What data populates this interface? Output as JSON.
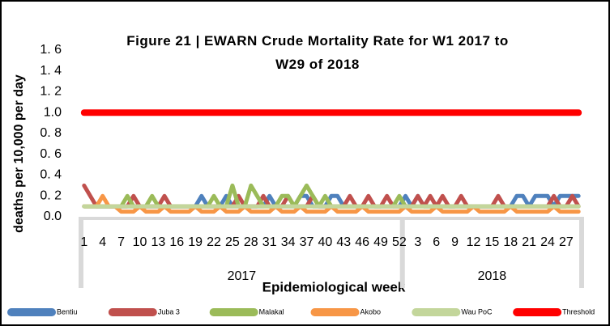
{
  "chart_data": {
    "type": "line",
    "title": "Figure 21 | EWARN Crude Mortality Rate for W1 2017 to W29 of 2018",
    "y_label": "deaths per 10,000 per day",
    "x_label": "Epidemiological week",
    "categories": [
      "1",
      null,
      null,
      "4",
      null,
      null,
      "7",
      null,
      null,
      "10",
      null,
      null,
      "13",
      null,
      null,
      "16",
      null,
      null,
      "19",
      null,
      null,
      "22",
      null,
      null,
      "25",
      null,
      null,
      "28",
      null,
      null,
      "31",
      null,
      null,
      "34",
      null,
      null,
      "37",
      null,
      null,
      "40",
      null,
      null,
      "43",
      null,
      null,
      "46",
      null,
      null,
      "49",
      null,
      null,
      "52",
      null,
      null,
      "3",
      null,
      null,
      "6",
      null,
      null,
      "9",
      null,
      null,
      "12",
      null,
      null,
      "15",
      null,
      null,
      "18",
      null,
      null,
      "21",
      null,
      null,
      "24",
      null,
      null,
      "27",
      null,
      null
    ],
    "x_groups": [
      {
        "label": "2017",
        "weeks": 52
      },
      {
        "label": "2018",
        "weeks": 29
      }
    ],
    "ylim": [
      0,
      1.6
    ],
    "yticks": [
      {
        "value": 0,
        "label": "0.0"
      },
      {
        "value": 0.2,
        "label": "0. 2"
      },
      {
        "value": 0.4,
        "label": "0. 4"
      },
      {
        "value": 0.6,
        "label": "0. 6"
      },
      {
        "value": 0.8,
        "label": "0. 8"
      },
      {
        "value": 1,
        "label": "1.0"
      },
      {
        "value": 1.2,
        "label": "1. 2"
      },
      {
        "value": 1.4,
        "label": "1. 4"
      },
      {
        "value": 1.6,
        "label": "1. 6"
      }
    ],
    "grid": false,
    "legend": "bottom",
    "series": [
      {
        "name": "Bentiu",
        "color": "#4f81bd",
        "values": [
          0.1,
          0.1,
          0.1,
          0.1,
          0.1,
          0.1,
          0.1,
          0.1,
          0.1,
          0.1,
          0.1,
          0.1,
          0.1,
          0.1,
          0.1,
          0.1,
          0.1,
          0.1,
          0.1,
          0.2,
          0.1,
          0.1,
          0.1,
          0.2,
          0.1,
          0.1,
          0.1,
          0.1,
          0.1,
          0.1,
          0.2,
          0.1,
          0.1,
          0.1,
          0.1,
          0.2,
          0.2,
          0.1,
          0.1,
          0.1,
          0.2,
          0.2,
          0.1,
          0.1,
          0.1,
          0.1,
          0.1,
          0.1,
          0.1,
          0.1,
          0.1,
          0.1,
          0.2,
          0.1,
          0.2,
          0.1,
          0.1,
          0.1,
          0.1,
          0.1,
          0.1,
          0.1,
          0.1,
          0.1,
          0.1,
          0.1,
          0.1,
          0.1,
          0.1,
          0.1,
          0.2,
          0.2,
          0.1,
          0.2,
          0.2,
          0.2,
          0.1,
          0.2,
          0.2,
          0.2,
          0.2
        ]
      },
      {
        "name": "Juba 3",
        "color": "#c0504d",
        "values": [
          0.3,
          0.2,
          0.1,
          0.1,
          0.1,
          0.1,
          0.1,
          0.1,
          0.2,
          0.1,
          0.1,
          0.1,
          0.1,
          0.2,
          0.1,
          0.1,
          0.1,
          0.1,
          0.1,
          0.1,
          0.1,
          0.1,
          0.1,
          0.1,
          0.1,
          0.2,
          0.1,
          0.1,
          0.1,
          0.2,
          0.1,
          0.1,
          0.1,
          0.2,
          0.1,
          0.1,
          0.1,
          0.2,
          0.1,
          0.1,
          0.1,
          0.1,
          0.1,
          0.2,
          0.1,
          0.1,
          0.2,
          0.1,
          0.1,
          0.2,
          0.1,
          0.1,
          0.1,
          0.1,
          0.2,
          0.1,
          0.2,
          0.1,
          0.2,
          0.1,
          0.1,
          0.2,
          0.1,
          0.1,
          0.1,
          0.1,
          0.1,
          0.2,
          0.1,
          0.1,
          0.1,
          0.1,
          0.1,
          0.1,
          0.1,
          0.1,
          0.2,
          0.1,
          0.1,
          0.2,
          0.1
        ]
      },
      {
        "name": "Malakal",
        "color": "#9bbb59",
        "values": [
          0.1,
          0.1,
          0.1,
          0.1,
          0.1,
          0.1,
          0.1,
          0.2,
          0.1,
          0.1,
          0.1,
          0.2,
          0.1,
          0.1,
          0.1,
          0.1,
          0.1,
          0.1,
          0.1,
          0.1,
          0.1,
          0.2,
          0.1,
          0.1,
          0.3,
          0.1,
          0.1,
          0.3,
          0.2,
          0.1,
          0.1,
          0.1,
          0.2,
          0.2,
          0.1,
          0.2,
          0.3,
          0.2,
          0.1,
          0.2,
          0.1,
          0.1,
          0.1,
          0.1,
          0.1,
          0.1,
          0.1,
          0.1,
          0.1,
          0.1,
          0.1,
          0.2,
          0.1,
          0.1,
          0.1,
          0.1,
          0.1,
          0.1,
          0.1,
          0.1,
          0.1,
          0.1,
          0.1,
          0.1,
          0.1,
          0.1,
          0.1,
          0.1,
          0.1,
          0.1,
          0.1,
          0.1,
          0.1,
          0.1,
          0.1,
          0.1,
          0.1,
          0.1,
          0.1,
          0.1,
          0.1
        ]
      },
      {
        "name": "Akobo",
        "color": "#f79646",
        "values": [
          0.1,
          0.1,
          0.1,
          0.2,
          0.1,
          0.1,
          0.05,
          0.05,
          0.05,
          0.1,
          0.05,
          0.05,
          0.05,
          0.1,
          0.05,
          0.05,
          0.05,
          0.05,
          0.1,
          0.05,
          0.05,
          0.05,
          0.1,
          0.05,
          0.05,
          0.05,
          0.1,
          0.05,
          0.05,
          0.05,
          0.05,
          0.1,
          0.05,
          0.05,
          0.05,
          0.1,
          0.05,
          0.05,
          0.05,
          0.05,
          0.1,
          0.05,
          0.05,
          0.05,
          0.05,
          0.1,
          0.05,
          0.05,
          0.05,
          0.05,
          0.05,
          0.05,
          0.1,
          0.05,
          0.05,
          0.05,
          0.05,
          0.1,
          0.05,
          0.05,
          0.05,
          0.05,
          0.05,
          0.1,
          0.05,
          0.05,
          0.05,
          0.05,
          0.05,
          0.1,
          0.05,
          0.05,
          0.05,
          0.05,
          0.05,
          0.05,
          0.1,
          0.05,
          0.05,
          0.05,
          0.05
        ]
      },
      {
        "name": "Wau PoC",
        "color": "#c3d69b",
        "values": [
          0.1,
          0.1,
          0.1,
          0.1,
          0.1,
          0.1,
          0.1,
          0.1,
          0.1,
          0.1,
          0.1,
          0.1,
          0.1,
          0.1,
          0.1,
          0.1,
          0.1,
          0.1,
          0.1,
          0.1,
          0.1,
          0.1,
          0.1,
          0.1,
          0.1,
          0.1,
          0.1,
          0.1,
          0.1,
          0.1,
          0.1,
          0.1,
          0.1,
          0.1,
          0.1,
          0.1,
          0.1,
          0.1,
          0.1,
          0.1,
          0.1,
          0.1,
          0.1,
          0.1,
          0.1,
          0.1,
          0.1,
          0.1,
          0.1,
          0.1,
          0.1,
          0.1,
          0.1,
          0.1,
          0.1,
          0.1,
          0.1,
          0.1,
          0.1,
          0.1,
          0.1,
          0.1,
          0.1,
          0.1,
          0.1,
          0.1,
          0.1,
          0.1,
          0.1,
          0.1,
          0.1,
          0.1,
          0.1,
          0.1,
          0.1,
          0.1,
          0.1,
          0.1,
          0.1,
          0.1,
          0.1
        ]
      },
      {
        "name": "Threshold",
        "color": "#ff0000",
        "values": [
          1,
          1,
          1,
          1,
          1,
          1,
          1,
          1,
          1,
          1,
          1,
          1,
          1,
          1,
          1,
          1,
          1,
          1,
          1,
          1,
          1,
          1,
          1,
          1,
          1,
          1,
          1,
          1,
          1,
          1,
          1,
          1,
          1,
          1,
          1,
          1,
          1,
          1,
          1,
          1,
          1,
          1,
          1,
          1,
          1,
          1,
          1,
          1,
          1,
          1,
          1,
          1,
          1,
          1,
          1,
          1,
          1,
          1,
          1,
          1,
          1,
          1,
          1,
          1,
          1,
          1,
          1,
          1,
          1,
          1,
          1,
          1,
          1,
          1,
          1,
          1,
          1,
          1,
          1,
          1,
          1
        ]
      }
    ]
  }
}
